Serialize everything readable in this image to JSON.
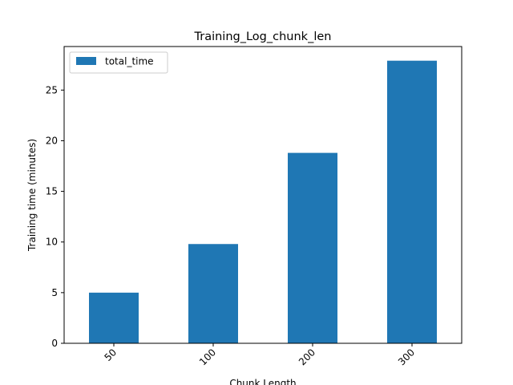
{
  "chart_data": {
    "type": "bar",
    "title": "Training_Log_chunk_len",
    "xlabel": "Chunk Length",
    "ylabel": "Training time (minutes)",
    "categories": [
      "50",
      "100",
      "200",
      "300"
    ],
    "series": [
      {
        "name": "total_time",
        "values": [
          5.0,
          9.8,
          18.8,
          27.9
        ],
        "color": "#1f77b4"
      }
    ],
    "ylim": [
      0,
      29.3
    ],
    "yticks": [
      0,
      5,
      10,
      15,
      20,
      25
    ],
    "grid": false,
    "legend_position": "upper-left"
  }
}
